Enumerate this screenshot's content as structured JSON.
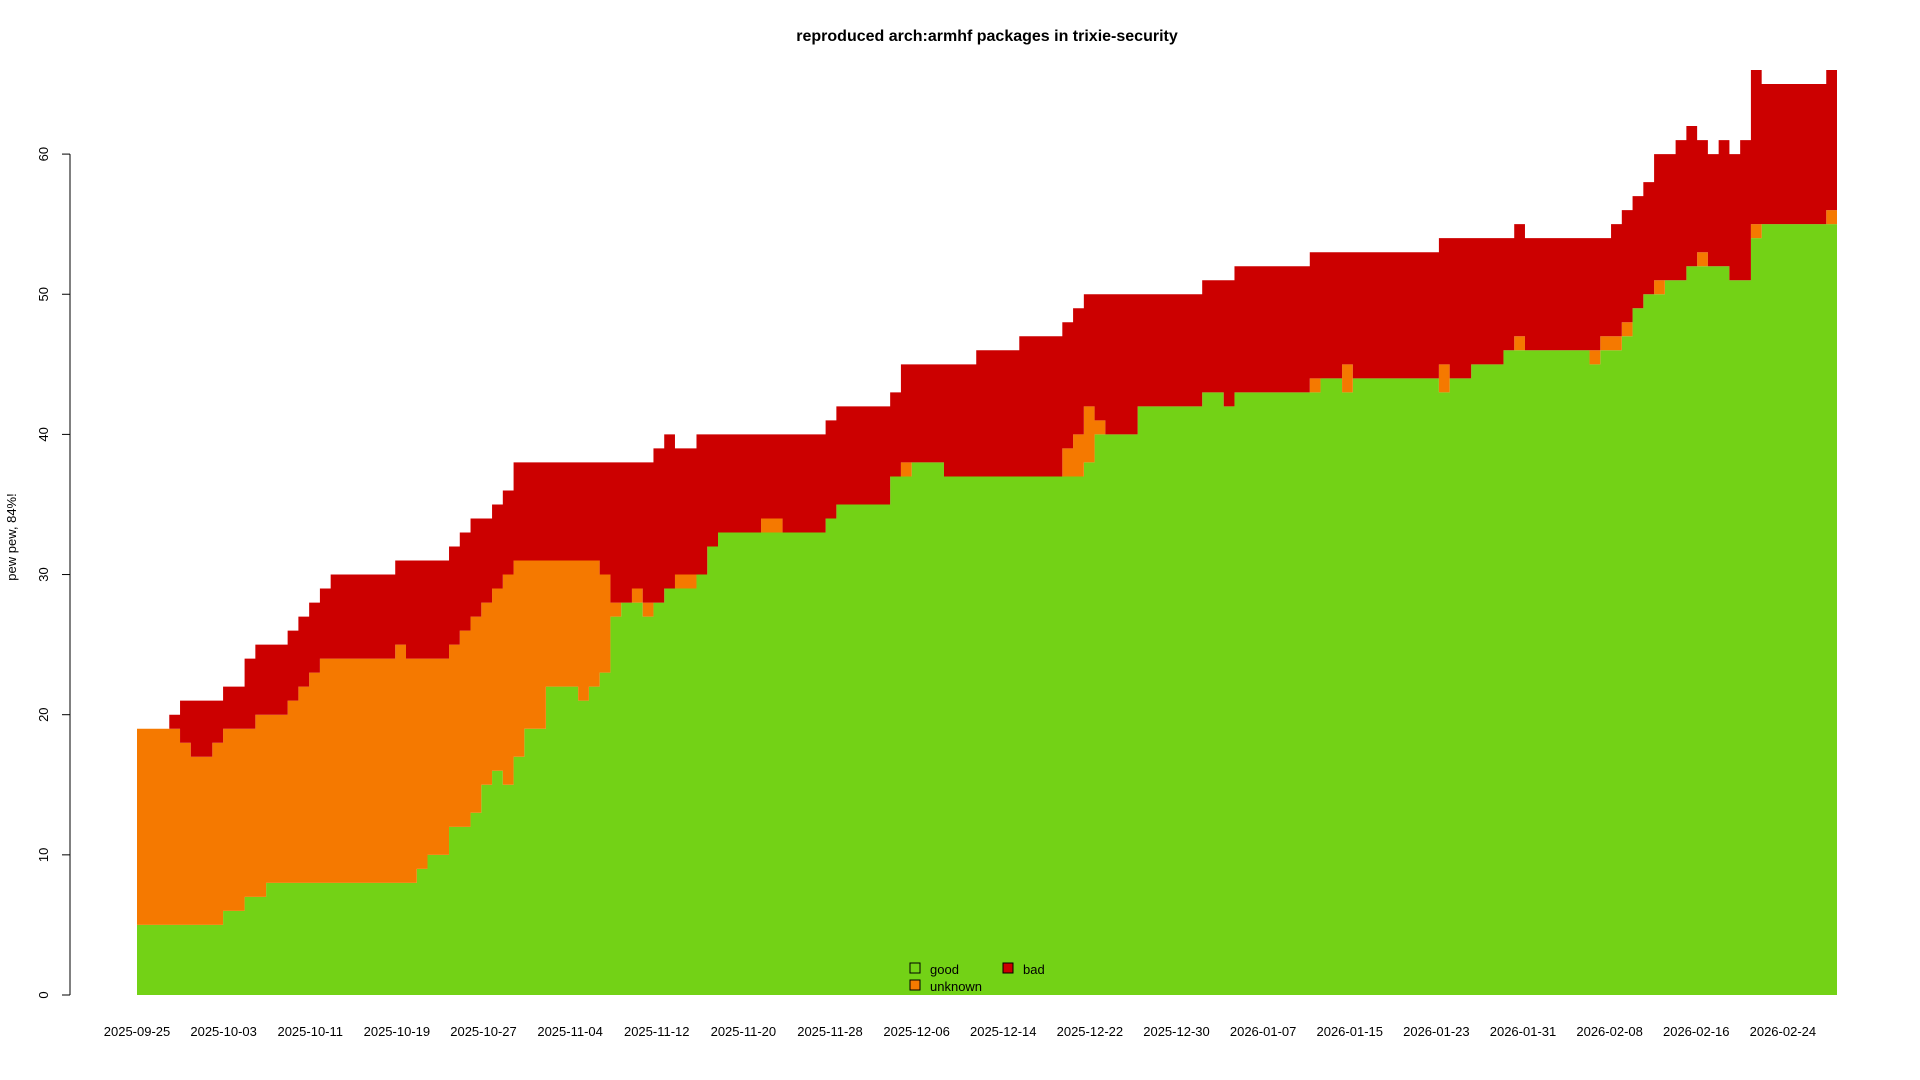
{
  "chart_data": {
    "type": "area",
    "stacked": true,
    "title": "reproduced arch:armhf packages in trixie-security",
    "xlabel": "",
    "ylabel": "pew pew, 84%!",
    "x_start": "2025-09-25",
    "x_end": "2026-03-01",
    "ylim": [
      0,
      66
    ],
    "yticks": [
      0,
      10,
      20,
      30,
      40,
      50,
      60
    ],
    "xticks": [
      "2025-09-25",
      "2025-10-03",
      "2025-10-11",
      "2025-10-19",
      "2025-10-27",
      "2025-11-04",
      "2025-11-12",
      "2025-11-20",
      "2025-11-28",
      "2025-12-06",
      "2025-12-14",
      "2025-12-22",
      "2025-12-30",
      "2026-01-07",
      "2026-01-15",
      "2026-01-23",
      "2026-01-31",
      "2026-02-08",
      "2026-02-16",
      "2026-02-24"
    ],
    "grid": false,
    "legend_position": "bottom-center",
    "colors": {
      "good": "#73d216",
      "unknown": "#f57900",
      "bad": "#cc0000"
    },
    "series": [
      {
        "name": "good",
        "color": "#73d216",
        "values": [
          5,
          5,
          5,
          5,
          5,
          5,
          5,
          5,
          6,
          6,
          7,
          7,
          8,
          8,
          8,
          8,
          8,
          8,
          8,
          8,
          8,
          8,
          8,
          8,
          8,
          8,
          9,
          10,
          10,
          12,
          12,
          13,
          15,
          16,
          15,
          17,
          19,
          19,
          22,
          22,
          22,
          21,
          22,
          23,
          27,
          28,
          28,
          27,
          28,
          29,
          29,
          29,
          30,
          32,
          33,
          33,
          33,
          33,
          33,
          33,
          33,
          33,
          33,
          33,
          34,
          35,
          35,
          35,
          35,
          35,
          37,
          37,
          38,
          38,
          38,
          37,
          37,
          37,
          37,
          37,
          37,
          37,
          37,
          37,
          37,
          37,
          37,
          37,
          38,
          40,
          40,
          40,
          40,
          42,
          42,
          42,
          42,
          42,
          42,
          43,
          43,
          42,
          43,
          43,
          43,
          43,
          43,
          43,
          43,
          43,
          44,
          44,
          43,
          44,
          44,
          44,
          44,
          44,
          44,
          44,
          44,
          43,
          44,
          44,
          45,
          45,
          45,
          46,
          46,
          46,
          46,
          46,
          46,
          46,
          46,
          45,
          46,
          46,
          47,
          49,
          50,
          50,
          51,
          51,
          52,
          52,
          52,
          52,
          51,
          51,
          54,
          55,
          55,
          55,
          55,
          55,
          55,
          55
        ]
      },
      {
        "name": "unknown",
        "color": "#f57900",
        "values": [
          14,
          14,
          14,
          14,
          13,
          12,
          12,
          13,
          13,
          13,
          12,
          13,
          12,
          12,
          13,
          14,
          15,
          16,
          16,
          16,
          16,
          16,
          16,
          16,
          17,
          16,
          15,
          14,
          14,
          13,
          14,
          14,
          13,
          13,
          15,
          14,
          12,
          12,
          9,
          9,
          9,
          10,
          9,
          7,
          1,
          0,
          1,
          1,
          0,
          0,
          1,
          1,
          0,
          0,
          0,
          0,
          0,
          0,
          1,
          1,
          0,
          0,
          0,
          0,
          0,
          0,
          0,
          0,
          0,
          0,
          0,
          1,
          0,
          0,
          0,
          0,
          0,
          0,
          0,
          0,
          0,
          0,
          0,
          0,
          0,
          0,
          2,
          3,
          4,
          1,
          0,
          0,
          0,
          0,
          0,
          0,
          0,
          0,
          0,
          0,
          0,
          0,
          0,
          0,
          0,
          0,
          0,
          0,
          0,
          1,
          0,
          0,
          2,
          0,
          0,
          0,
          0,
          0,
          0,
          0,
          0,
          2,
          0,
          0,
          0,
          0,
          0,
          0,
          1,
          0,
          0,
          0,
          0,
          0,
          0,
          1,
          1,
          1,
          1,
          0,
          0,
          1,
          0,
          0,
          0,
          1,
          0,
          0,
          0,
          0,
          1,
          0,
          0,
          0,
          0,
          0,
          0,
          1
        ]
      },
      {
        "name": "bad",
        "color": "#cc0000",
        "values": [
          0,
          0,
          0,
          1,
          3,
          4,
          4,
          3,
          3,
          3,
          5,
          5,
          5,
          5,
          5,
          5,
          5,
          5,
          6,
          6,
          6,
          6,
          6,
          6,
          6,
          7,
          7,
          7,
          7,
          7,
          7,
          7,
          6,
          6,
          6,
          7,
          7,
          7,
          7,
          7,
          7,
          7,
          7,
          8,
          10,
          10,
          9,
          10,
          11,
          11,
          9,
          9,
          10,
          8,
          7,
          7,
          7,
          7,
          6,
          6,
          7,
          7,
          7,
          7,
          7,
          7,
          7,
          7,
          7,
          7,
          6,
          7,
          7,
          7,
          7,
          8,
          8,
          8,
          9,
          9,
          9,
          9,
          10,
          10,
          10,
          10,
          9,
          9,
          8,
          9,
          10,
          10,
          10,
          8,
          8,
          8,
          8,
          8,
          8,
          8,
          8,
          9,
          9,
          9,
          9,
          9,
          9,
          9,
          9,
          9,
          9,
          9,
          8,
          9,
          9,
          9,
          9,
          9,
          9,
          9,
          9,
          9,
          10,
          10,
          9,
          9,
          9,
          8,
          8,
          8,
          8,
          8,
          8,
          8,
          8,
          8,
          7,
          8,
          8,
          8,
          8,
          9,
          9,
          10,
          10,
          8,
          8,
          9,
          9,
          10,
          11,
          10,
          10,
          10,
          10,
          10,
          10,
          10
        ]
      }
    ],
    "legend": [
      {
        "label": "good",
        "color": "#73d216"
      },
      {
        "label": "unknown",
        "color": "#f57900"
      },
      {
        "label": "bad",
        "color": "#cc0000"
      }
    ]
  }
}
